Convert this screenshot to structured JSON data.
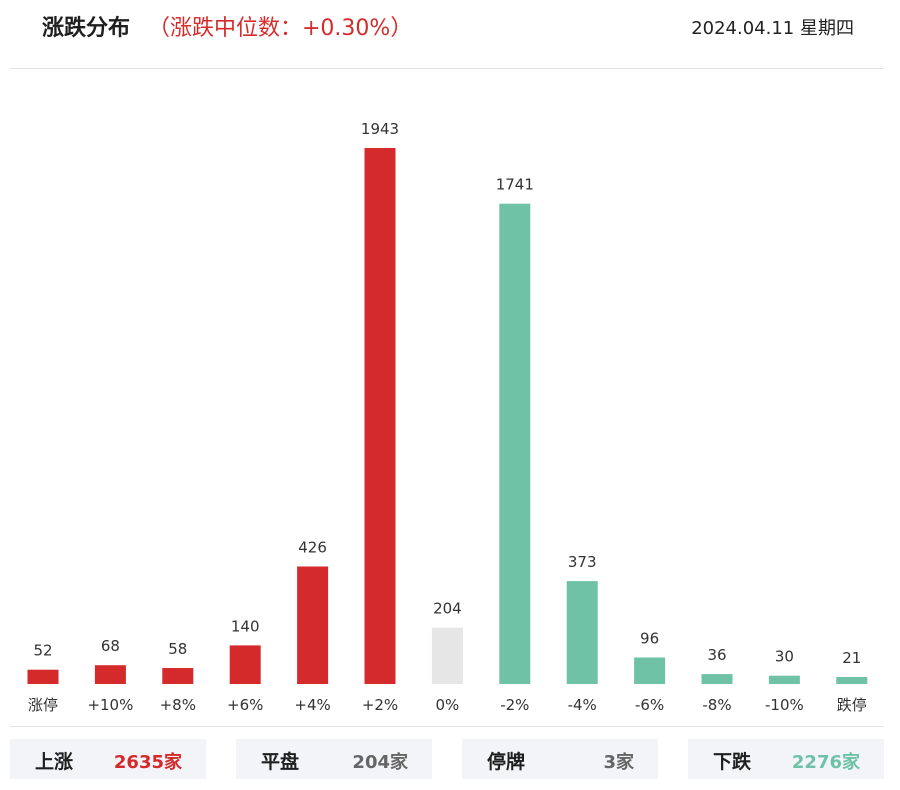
{
  "header": {
    "title": "涨跌分布",
    "median_text": "（涨跌中位数：+0.30%）",
    "date": "2024.04.11 星期四"
  },
  "colors": {
    "up": "#d42a2b",
    "flat": "#e6e6e6",
    "down": "#6fc2a6",
    "text": "#222222",
    "panel": "#f3f4f8"
  },
  "chart_data": {
    "type": "bar",
    "categories": [
      "涨停",
      "+10%",
      "+8%",
      "+6%",
      "+4%",
      "+2%",
      "0%",
      "-2%",
      "-4%",
      "-6%",
      "-8%",
      "-10%",
      "跌停"
    ],
    "values": [
      52,
      68,
      58,
      140,
      426,
      1943,
      204,
      1741,
      373,
      96,
      36,
      30,
      21
    ],
    "bar_colors": [
      "#d42a2b",
      "#d42a2b",
      "#d42a2b",
      "#d42a2b",
      "#d42a2b",
      "#d42a2b",
      "#e6e6e6",
      "#6fc2a6",
      "#6fc2a6",
      "#6fc2a6",
      "#6fc2a6",
      "#6fc2a6",
      "#6fc2a6"
    ],
    "ylim": [
      0,
      1943
    ],
    "grid": false,
    "legend": "none"
  },
  "summary": [
    {
      "label": "上涨",
      "value": "2635家",
      "color": "#d42a2b"
    },
    {
      "label": "平盘",
      "value": "204家",
      "color": "#666666"
    },
    {
      "label": "停牌",
      "value": "3家",
      "color": "#666666"
    },
    {
      "label": "下跌",
      "value": "2276家",
      "color": "#6fc2a6"
    }
  ]
}
